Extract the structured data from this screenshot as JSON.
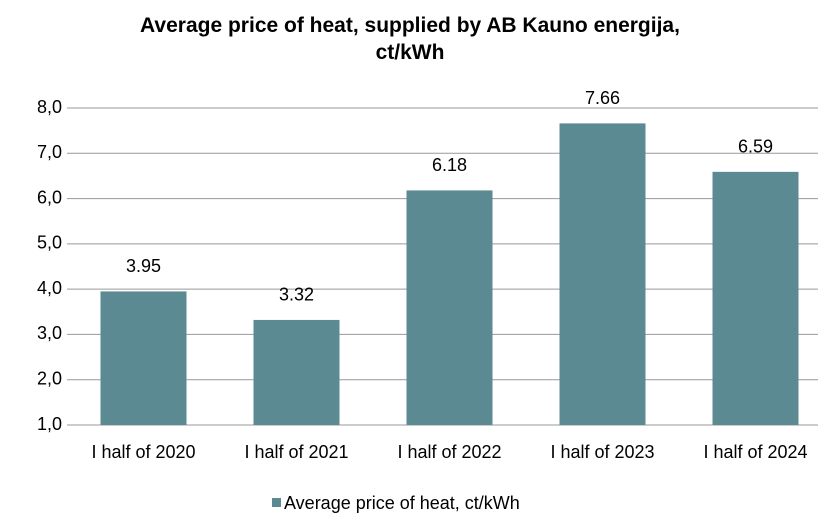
{
  "chart_data": {
    "type": "bar",
    "title": "Average price of heat, supplied by AB Kauno energija, ct/kWh",
    "categories": [
      "I half of 2020",
      "I half of 2021",
      "I half of 2022",
      "I half of 2023",
      "I half of 2024"
    ],
    "series": [
      {
        "name": "Average price of heat, ct/kWh",
        "color": "#5b8a93",
        "values": [
          3.95,
          3.32,
          6.18,
          7.66,
          6.59
        ]
      }
    ],
    "ylim": [
      1,
      8
    ],
    "yticks": [
      {
        "value": 1,
        "label": "1,0"
      },
      {
        "value": 2,
        "label": "2,0"
      },
      {
        "value": 3,
        "label": "3,0"
      },
      {
        "value": 4,
        "label": "4,0"
      },
      {
        "value": 5,
        "label": "5,0"
      },
      {
        "value": 6,
        "label": "6,0"
      },
      {
        "value": 7,
        "label": "7,0"
      },
      {
        "value": 8,
        "label": "8,0"
      }
    ],
    "grid": true,
    "legend": "bottom"
  }
}
